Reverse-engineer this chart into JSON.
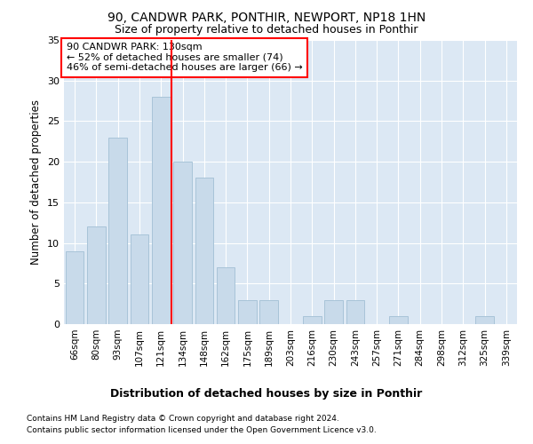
{
  "title1": "90, CANDWR PARK, PONTHIR, NEWPORT, NP18 1HN",
  "title2": "Size of property relative to detached houses in Ponthir",
  "xlabel": "Distribution of detached houses by size in Ponthir",
  "ylabel": "Number of detached properties",
  "categories": [
    "66sqm",
    "80sqm",
    "93sqm",
    "107sqm",
    "121sqm",
    "134sqm",
    "148sqm",
    "162sqm",
    "175sqm",
    "189sqm",
    "203sqm",
    "216sqm",
    "230sqm",
    "243sqm",
    "257sqm",
    "271sqm",
    "284sqm",
    "298sqm",
    "312sqm",
    "325sqm",
    "339sqm"
  ],
  "values": [
    9,
    12,
    23,
    11,
    28,
    20,
    18,
    7,
    3,
    3,
    0,
    1,
    3,
    3,
    0,
    1,
    0,
    0,
    0,
    1,
    0
  ],
  "bar_color": "#c8daea",
  "bar_edgecolor": "#a8c4d8",
  "redline_x": 5,
  "annotation_title": "90 CANDWR PARK: 130sqm",
  "annotation_line2": "← 52% of detached houses are smaller (74)",
  "annotation_line3": "46% of semi-detached houses are larger (66) →",
  "ylim": [
    0,
    35
  ],
  "yticks": [
    0,
    5,
    10,
    15,
    20,
    25,
    30,
    35
  ],
  "bg_color": "#dce8f4",
  "footer1": "Contains HM Land Registry data © Crown copyright and database right 2024.",
  "footer2": "Contains public sector information licensed under the Open Government Licence v3.0."
}
